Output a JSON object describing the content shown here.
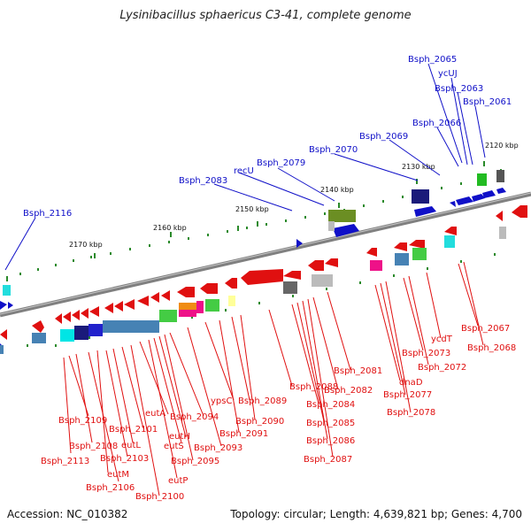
{
  "title": "Lysinibacillus sphaericus C3-41, complete genome",
  "footer": {
    "accession": "Accession: NC_010382",
    "topology": "Topology: circular; Length: 4,639,821 bp; Genes: 4,700"
  },
  "colors": {
    "forward": "#1010c8",
    "reverse": "#e01010",
    "backbone": "#808080",
    "tick": "#2a8a2a"
  },
  "scale_labels": [
    "2120 kbp",
    "2130 kbp",
    "2140 kbp",
    "2150 kbp",
    "2160 kbp",
    "2170 kbp"
  ],
  "forward_labels": [
    "Bsph_2065",
    "ycUJ",
    "Bsph_2063",
    "Bsph_2061",
    "Bsph_2066",
    "Bsph_2069",
    "Bsph_2070",
    "Bsph_2079",
    "recU",
    "Bsph_2083",
    "Bsph_2116"
  ],
  "reverse_labels": [
    "Bsph_2067",
    "Bsph_2068",
    "ycdT",
    "Bsph_2073",
    "Bsph_2072",
    "dnaD",
    "Bsph_2077",
    "Bsph_2078",
    "Bsph_2081",
    "Bsph_2082",
    "Bsph_2088",
    "Bsph_2084",
    "Bsph_2085",
    "Bsph_2086",
    "Bsph_2087",
    "ypsC",
    "Bsph_2089",
    "Bsph_2090",
    "Bsph_2091",
    "Bsph_2093",
    "Bsph_2094",
    "eutA",
    "eutH",
    "eutS",
    "Bsph_2095",
    "eutP",
    "Bsph_2100",
    "Bsph_2101",
    "eutL",
    "Bsph_2103",
    "eutM",
    "Bsph_2106",
    "Bsph_2108",
    "Bsph_2109",
    "Bsph_2113"
  ]
}
